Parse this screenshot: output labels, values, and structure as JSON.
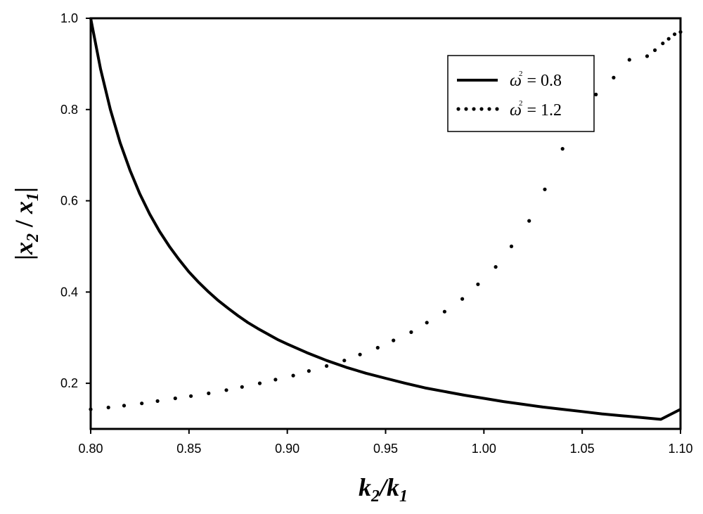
{
  "chart_data": {
    "type": "line",
    "xlabel": {
      "a": "k",
      "a_sub": "2",
      "sep": "/",
      "b": "k",
      "b_sub": "1"
    },
    "ylabel": {
      "open": "|",
      "a": "x",
      "a_sub": "2",
      "sep": " / ",
      "b": "x",
      "b_sub": "1",
      "close": "|"
    },
    "xlim": [
      0.8,
      1.1
    ],
    "ylim": [
      0.1,
      1.0
    ],
    "x_ticks": [
      0.8,
      0.85,
      0.9,
      0.95,
      1.0,
      1.05,
      1.1
    ],
    "x_tick_labels": [
      "0.80",
      "0.85",
      "0.90",
      "0.95",
      "1.00",
      "1.05",
      "1.10"
    ],
    "y_ticks": [
      0.2,
      0.4,
      0.6,
      0.8,
      1.0
    ],
    "y_tick_labels": [
      "0.2",
      "0.4",
      "0.6",
      "0.8",
      "1.0"
    ],
    "grid": false,
    "legend_position": "top-right",
    "series": [
      {
        "name": "ω² = 0.8",
        "legend": {
          "symbol": "ω",
          "sup": "2",
          "rest": " = 0.8"
        },
        "style": "solid",
        "color": "#000000",
        "x": [
          0.8,
          0.805,
          0.81,
          0.815,
          0.82,
          0.825,
          0.83,
          0.835,
          0.84,
          0.845,
          0.85,
          0.855,
          0.86,
          0.865,
          0.87,
          0.875,
          0.88,
          0.885,
          0.89,
          0.895,
          0.9,
          0.91,
          0.92,
          0.93,
          0.94,
          0.95,
          0.96,
          0.97,
          0.98,
          0.99,
          1.0,
          1.01,
          1.02,
          1.03,
          1.04,
          1.05,
          1.06,
          1.07,
          1.08,
          1.09,
          1.1
        ],
        "y": [
          1.0,
          0.889,
          0.8,
          0.727,
          0.667,
          0.615,
          0.571,
          0.533,
          0.5,
          0.471,
          0.444,
          0.421,
          0.4,
          0.381,
          0.364,
          0.348,
          0.333,
          0.32,
          0.308,
          0.296,
          0.286,
          0.267,
          0.25,
          0.235,
          0.222,
          0.211,
          0.2,
          0.19,
          0.182,
          0.174,
          0.167,
          0.16,
          0.154,
          0.148,
          0.143,
          0.138,
          0.133,
          0.129,
          0.125,
          0.121,
          0.143
        ]
      },
      {
        "name": "ω² = 1.2",
        "legend": {
          "symbol": "ω",
          "sup": "2",
          "rest": " = 1.2"
        },
        "style": "dotted",
        "color": "#000000",
        "x": [
          0.8,
          0.809,
          0.817,
          0.826,
          0.834,
          0.843,
          0.851,
          0.86,
          0.869,
          0.877,
          0.886,
          0.894,
          0.903,
          0.911,
          0.92,
          0.929,
          0.937,
          0.946,
          0.954,
          0.963,
          0.971,
          0.98,
          0.989,
          0.997,
          1.006,
          1.014,
          1.023,
          1.031,
          1.04,
          1.049,
          1.057,
          1.066,
          1.074,
          1.083,
          1.087,
          1.091,
          1.094,
          1.097,
          1.1
        ],
        "y": [
          0.143,
          0.147,
          0.151,
          0.156,
          0.161,
          0.167,
          0.172,
          0.178,
          0.185,
          0.192,
          0.2,
          0.208,
          0.217,
          0.227,
          0.238,
          0.25,
          0.263,
          0.278,
          0.294,
          0.312,
          0.333,
          0.357,
          0.385,
          0.417,
          0.455,
          0.5,
          0.556,
          0.625,
          0.714,
          0.769,
          0.833,
          0.87,
          0.909,
          0.917,
          0.93,
          0.945,
          0.955,
          0.965,
          0.97
        ]
      }
    ]
  }
}
